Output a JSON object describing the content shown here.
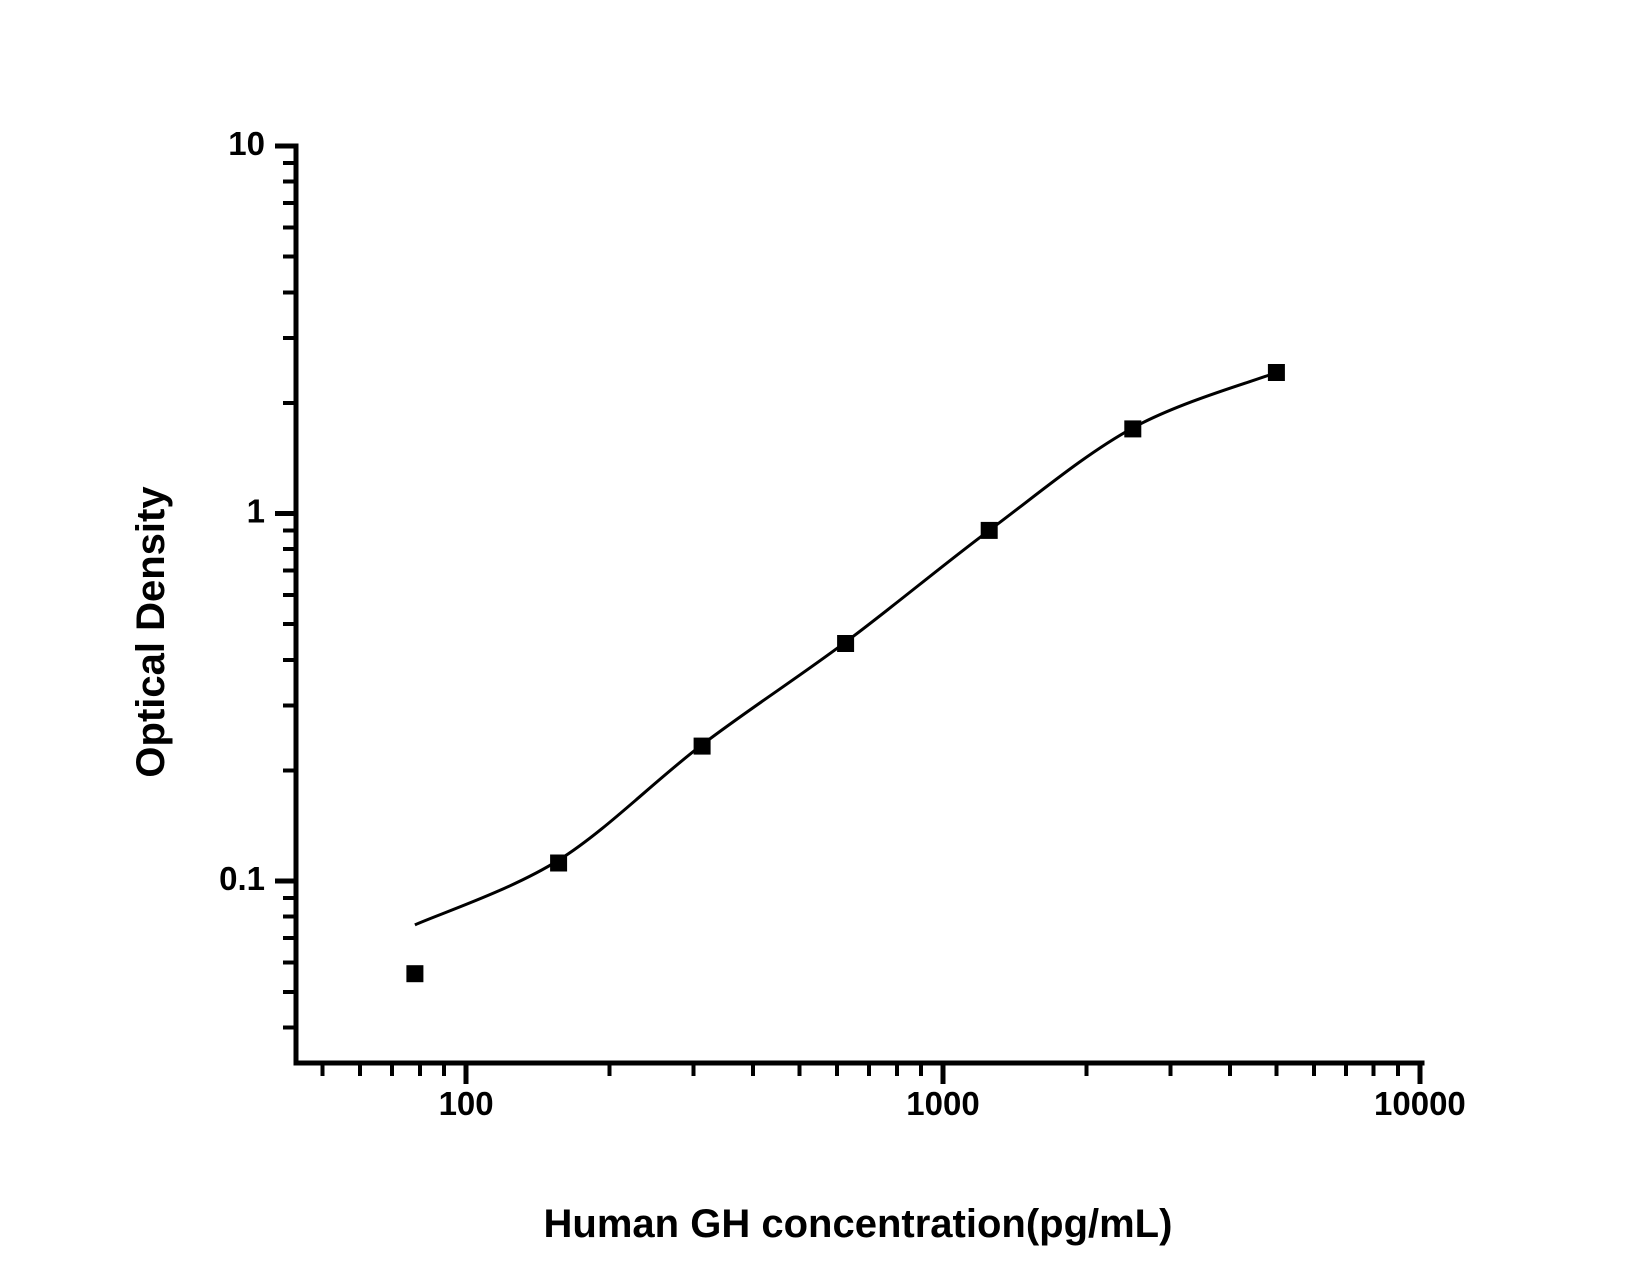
{
  "chart_data": {
    "type": "scatter",
    "title": "",
    "xlabel": "Human GH concentration(pg/mL)",
    "ylabel": "Optical Density",
    "x_scale": "log",
    "y_scale": "log",
    "xlim": [
      44,
      10100
    ],
    "ylim": [
      0.032,
      10
    ],
    "x_major_ticks": [
      100,
      1000,
      10000
    ],
    "x_tick_labels": [
      "100",
      "1000",
      "10000"
    ],
    "y_major_ticks": [
      0.1,
      1,
      10
    ],
    "y_tick_labels": [
      "0.1",
      "1",
      "10"
    ],
    "grid": false,
    "legend": false,
    "marker_shape": "filled-square",
    "marker_color": "#000000",
    "curve_color": "#000000",
    "axis_color": "#000000",
    "background_color": "#ffffff",
    "points": [
      {
        "x": 78.1,
        "y": 0.056
      },
      {
        "x": 156.3,
        "y": 0.112
      },
      {
        "x": 312.5,
        "y": 0.233
      },
      {
        "x": 625,
        "y": 0.443
      },
      {
        "x": 1250,
        "y": 0.9
      },
      {
        "x": 2500,
        "y": 1.7
      },
      {
        "x": 5000,
        "y": 2.42
      }
    ],
    "fit_curve": [
      {
        "x": 78.1,
        "y": 0.076
      },
      {
        "x": 156.3,
        "y": 0.114
      },
      {
        "x": 312.5,
        "y": 0.235
      },
      {
        "x": 625,
        "y": 0.447
      },
      {
        "x": 1250,
        "y": 0.9
      },
      {
        "x": 2500,
        "y": 1.71
      },
      {
        "x": 5000,
        "y": 2.42
      }
    ]
  }
}
